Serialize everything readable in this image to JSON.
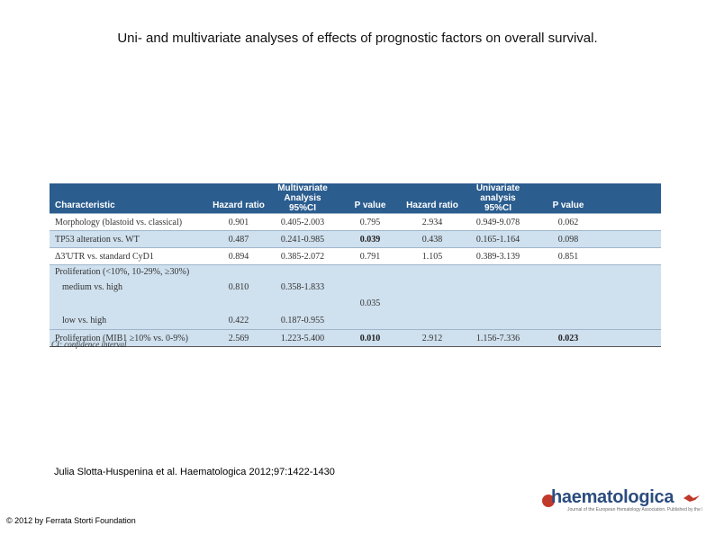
{
  "title": "Uni- and multivariate analyses of effects of prognostic factors on overall survival.",
  "table": {
    "header": {
      "characteristic": "Characteristic",
      "multivariate_group": "Multivariate Analysis",
      "univariate_group": "Univariate analysis",
      "hazard_ratio": "Hazard ratio",
      "ci": "95%CI",
      "p_value": "P value"
    },
    "rows": [
      {
        "label": "Morphology (blastoid vs. classical)",
        "m_hr": "0.901",
        "m_ci": "0.405-2.003",
        "m_p": "0.795",
        "u_hr": "2.934",
        "u_ci": "0.949-9.078",
        "u_p": "0.062"
      },
      {
        "label": "TP53 alteration vs. WT",
        "m_hr": "0.487",
        "m_ci": "0.241-0.985",
        "m_p": "0.039",
        "u_hr": "0.438",
        "u_ci": "0.165-1.164",
        "u_p": "0.098"
      },
      {
        "label": "Δ3'UTR vs. standard CyD1",
        "m_hr": "0.894",
        "m_ci": "0.385-2.072",
        "m_p": "0.791",
        "u_hr": "1.105",
        "u_ci": "0.389-3.139",
        "u_p": "0.851"
      }
    ],
    "proliferation": {
      "label": "Proliferation (<10%, 10-29%, ≥30%)",
      "medium_label": "medium vs. high",
      "medium_hr": "0.810",
      "medium_ci": "0.358-1.833",
      "p": "0.035",
      "low_label": "low vs. high",
      "low_hr": "0.422",
      "low_ci": "0.187-0.955"
    },
    "mib1": {
      "label": "Proliferation (MIB1 ≥10% vs. 0-9%)",
      "m_hr": "2.569",
      "m_ci": "1.223-5.400",
      "m_p": "0.010",
      "u_hr": "2.912",
      "u_ci": "1.156-7.336",
      "u_p": "0.023"
    },
    "footnote": "CI: confidence interval"
  },
  "citation": "Julia Slotta-Huspenina et al. Haematologica 2012;97:1422-1430",
  "copyright": "© 2012 by Ferrata Storti Foundation",
  "logo": {
    "word": "haematologica",
    "subtitle": "Journal of the European Hematology Association. Published by the Ferrata Storti Foundation"
  },
  "colors": {
    "header_bg": "#2b5d8f",
    "row_blue": "#cfe0ee",
    "logo_blue": "#2b4c7e",
    "logo_red": "#c0392b"
  }
}
